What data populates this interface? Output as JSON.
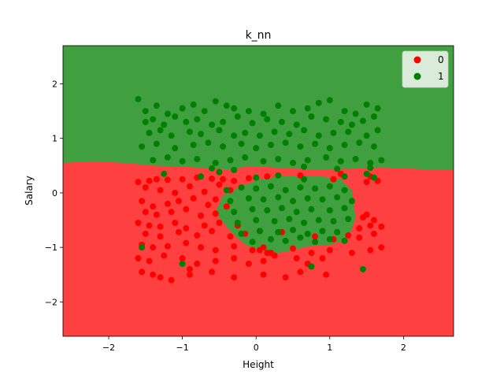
{
  "chart_data": {
    "type": "scatter",
    "title": "k_nn",
    "xlabel": "Height",
    "ylabel": "Salary",
    "xlim": [
      -2.62,
      2.68
    ],
    "ylim": [
      -2.63,
      2.7
    ],
    "xticks": [
      -2,
      -1,
      0,
      1,
      2
    ],
    "yticks": [
      -2,
      -1,
      0,
      1,
      2
    ],
    "legend": {
      "placement": "top-right"
    },
    "regions": {
      "class_0_color": "#ff4040",
      "class_1_color": "#40a040",
      "boundary_x": [
        -2.62,
        -2.2,
        -1.8,
        -1.4,
        -1.0,
        -0.6,
        -0.3,
        -0.2,
        0.0,
        0.4,
        0.8,
        1.2,
        1.5,
        1.7,
        2.0,
        2.3,
        2.68
      ],
      "boundary_y": [
        0.55,
        0.58,
        0.55,
        0.5,
        0.48,
        0.45,
        0.42,
        0.47,
        0.49,
        0.45,
        0.43,
        0.44,
        0.45,
        0.47,
        0.45,
        0.43,
        0.42
      ],
      "island_x": [
        -0.55,
        -0.45,
        -0.2,
        0.05,
        0.3,
        0.6,
        0.9,
        1.15,
        1.3,
        1.35,
        1.25,
        1.0,
        0.7,
        0.5,
        0.3,
        0.05,
        -0.15,
        -0.35,
        -0.5
      ],
      "island_y": [
        -0.35,
        -0.05,
        0.12,
        0.25,
        0.3,
        0.32,
        0.3,
        0.25,
        0.05,
        -0.45,
        -0.85,
        -0.95,
        -0.98,
        -1.05,
        -1.1,
        -1.05,
        -0.95,
        -0.7,
        -0.45
      ]
    },
    "series": [
      {
        "name": "0",
        "color": "#ff0000",
        "x": [
          -1.6,
          -1.45,
          -1.35,
          -1.2,
          -1.0,
          -0.8,
          -0.6,
          -0.45,
          -0.3,
          -0.1,
          0.15,
          0.6,
          1.05,
          1.15,
          1.5,
          1.55,
          1.65,
          -1.5,
          -1.3,
          -1.1,
          -0.9,
          -0.7,
          -0.5,
          -0.35,
          -1.55,
          -1.4,
          -1.2,
          -1.05,
          -0.85,
          -0.65,
          -0.55,
          -1.5,
          -1.35,
          -1.15,
          -0.95,
          -0.75,
          -0.55,
          -0.4,
          1.45,
          1.6,
          1.5,
          -1.6,
          -1.45,
          -1.3,
          -1.1,
          -0.95,
          -0.7,
          -0.5,
          -0.25,
          1.4,
          1.55,
          1.7,
          -1.5,
          -1.3,
          -1.05,
          -0.8,
          -0.6,
          -0.35,
          -0.15,
          0.05,
          0.35,
          0.8,
          1.05,
          1.25,
          1.4,
          1.6,
          -1.55,
          -1.4,
          -1.2,
          -0.95,
          -0.75,
          -0.55,
          -0.3,
          -0.05,
          0.2,
          0.5,
          0.75,
          1.0,
          1.3,
          1.55,
          1.7,
          -1.6,
          -1.45,
          -1.25,
          -1.0,
          -0.8,
          -0.55,
          -0.3,
          -0.1,
          0.1,
          0.25,
          0.55,
          0.7,
          0.9,
          -1.55,
          -1.4,
          -1.3,
          -0.9,
          -0.6,
          -0.3,
          0.1,
          0.4,
          0.6,
          0.95,
          0.05,
          0.1,
          0.15,
          -0.9,
          -1.15
        ],
        "y": [
          0.2,
          0.22,
          0.25,
          0.24,
          0.25,
          0.28,
          0.26,
          0.25,
          0.22,
          0.27,
          0.3,
          0.32,
          0.25,
          0.35,
          0.2,
          0.3,
          0.22,
          0.1,
          0.05,
          0.0,
          0.12,
          0.02,
          0.15,
          0.05,
          -0.15,
          -0.25,
          -0.2,
          -0.15,
          -0.1,
          -0.22,
          -0.12,
          -0.35,
          -0.4,
          -0.35,
          -0.3,
          -0.42,
          -0.38,
          -0.25,
          -0.45,
          -0.5,
          -0.4,
          -0.55,
          -0.6,
          -0.62,
          -0.55,
          -0.65,
          -0.6,
          -0.55,
          -0.6,
          -0.65,
          -0.6,
          -0.62,
          -0.75,
          -0.8,
          -0.72,
          -0.78,
          -0.7,
          -0.8,
          -0.75,
          -0.7,
          -0.72,
          -0.8,
          -0.85,
          -0.78,
          -0.82,
          -0.75,
          -0.95,
          -1.0,
          -0.98,
          -0.92,
          -1.0,
          -1.05,
          -0.98,
          -1.05,
          -1.1,
          -1.02,
          -1.1,
          -1.05,
          -1.1,
          -1.05,
          -1.0,
          -1.2,
          -1.25,
          -1.15,
          -1.2,
          -1.3,
          -1.25,
          -1.2,
          -1.3,
          -1.25,
          -1.15,
          -1.2,
          -1.3,
          -1.2,
          -1.45,
          -1.5,
          -1.55,
          -1.5,
          -1.45,
          -1.55,
          -1.5,
          -1.55,
          -1.45,
          -1.5,
          -1.05,
          -1.0,
          -1.1,
          -1.4,
          -1.6
        ]
      },
      {
        "name": "1",
        "color": "#008000",
        "x": [
          -1.6,
          -1.5,
          -1.35,
          -1.2,
          -1.0,
          -0.85,
          -0.7,
          -0.55,
          -0.4,
          -0.3,
          -0.1,
          0.1,
          0.3,
          0.5,
          0.7,
          0.85,
          1.0,
          1.2,
          1.35,
          1.5,
          1.65,
          -1.5,
          -1.4,
          -1.25,
          -1.1,
          -0.95,
          -0.8,
          -0.6,
          -0.45,
          -0.25,
          -0.05,
          0.15,
          0.35,
          0.55,
          0.75,
          0.95,
          1.15,
          1.3,
          1.45,
          1.6,
          -1.45,
          -1.3,
          -1.15,
          -0.9,
          -0.75,
          -0.5,
          -0.3,
          -0.15,
          0.05,
          0.25,
          0.45,
          0.65,
          0.85,
          1.05,
          1.25,
          1.5,
          1.65,
          -1.55,
          -1.35,
          -1.1,
          -0.85,
          -0.65,
          -0.45,
          -0.2,
          0.0,
          0.2,
          0.4,
          0.6,
          0.8,
          1.0,
          1.2,
          1.4,
          1.6,
          -1.4,
          -1.2,
          -1.0,
          -0.8,
          -0.55,
          -0.35,
          -0.15,
          0.1,
          0.3,
          0.5,
          0.7,
          0.95,
          1.15,
          1.35,
          1.55,
          1.7,
          -0.4,
          -0.2,
          0.0,
          0.2,
          0.4,
          0.6,
          0.8,
          1.0,
          1.2,
          -0.35,
          -0.1,
          0.1,
          0.3,
          0.5,
          0.7,
          0.9,
          1.1,
          1.3,
          -0.3,
          -0.05,
          0.15,
          0.35,
          0.55,
          0.75,
          1.0,
          1.2,
          -0.25,
          0.0,
          0.25,
          0.45,
          0.65,
          0.85,
          1.05,
          1.25,
          -0.2,
          0.05,
          0.3,
          0.5,
          0.7,
          0.9,
          1.1,
          -0.05,
          0.2,
          0.4,
          0.6,
          0.8,
          1.0,
          1.2,
          -0.6,
          -0.3,
          0.65,
          1.1,
          1.55,
          -1.25,
          -0.75,
          -0.5,
          0.0,
          0.3,
          0.65,
          1.2,
          1.5,
          1.6,
          -1.55,
          -1.0,
          0.75,
          1.45
        ],
        "y": [
          1.72,
          1.5,
          1.6,
          1.45,
          1.55,
          1.62,
          1.5,
          1.68,
          1.6,
          1.55,
          1.5,
          1.45,
          1.6,
          1.5,
          1.55,
          1.65,
          1.7,
          1.5,
          1.45,
          1.62,
          1.55,
          1.3,
          1.35,
          1.25,
          1.4,
          1.3,
          1.35,
          1.25,
          1.3,
          1.4,
          1.28,
          1.35,
          1.3,
          1.25,
          1.4,
          1.35,
          1.3,
          1.25,
          1.32,
          1.4,
          1.1,
          1.15,
          1.05,
          1.12,
          1.08,
          1.15,
          1.05,
          1.1,
          1.05,
          1.12,
          1.08,
          1.15,
          1.05,
          1.1,
          1.12,
          1.05,
          1.15,
          0.85,
          0.9,
          0.82,
          0.88,
          0.92,
          0.85,
          0.9,
          0.82,
          0.88,
          0.92,
          0.85,
          0.9,
          0.82,
          0.88,
          0.92,
          0.85,
          0.6,
          0.65,
          0.58,
          0.62,
          0.55,
          0.6,
          0.65,
          0.58,
          0.62,
          0.55,
          0.6,
          0.65,
          0.58,
          0.62,
          0.55,
          0.6,
          0.05,
          0.1,
          0.08,
          0.12,
          0.05,
          0.1,
          0.08,
          0.12,
          0.05,
          -0.15,
          -0.1,
          -0.12,
          -0.08,
          -0.15,
          -0.1,
          -0.12,
          -0.08,
          -0.15,
          -0.35,
          -0.3,
          -0.32,
          -0.28,
          -0.35,
          -0.3,
          -0.32,
          -0.28,
          -0.55,
          -0.5,
          -0.52,
          -0.48,
          -0.55,
          -0.5,
          -0.52,
          -0.48,
          -0.75,
          -0.7,
          -0.72,
          -0.68,
          -0.75,
          -0.7,
          -0.72,
          -0.9,
          -0.85,
          -0.88,
          -0.82,
          -0.9,
          -0.85,
          -0.88,
          0.45,
          0.42,
          0.48,
          0.44,
          0.46,
          0.35,
          0.3,
          0.38,
          0.28,
          0.32,
          0.25,
          0.3,
          0.35,
          0.28,
          -1.0,
          -1.3,
          -1.35,
          -1.4
        ]
      }
    ]
  }
}
